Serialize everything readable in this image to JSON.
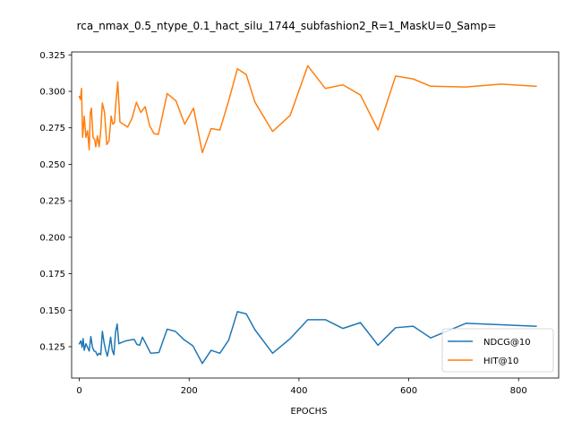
{
  "chart_data": {
    "type": "line",
    "title": "rca_nmax_0.5_ntype_0.1_hact_silu_1744_subfashion2_R=1_MaskU=0_Samp=",
    "xlabel": "EPOCHS",
    "ylabel": "",
    "xlim": [
      -14,
      873
    ],
    "ylim": [
      0.1035,
      0.327
    ],
    "x_ticks": [
      0,
      200,
      400,
      600,
      800
    ],
    "y_ticks": [
      0.125,
      0.15,
      0.175,
      0.2,
      0.225,
      0.25,
      0.275,
      0.3,
      0.325
    ],
    "x_tick_labels": [
      "0",
      "200",
      "400",
      "600",
      "800"
    ],
    "y_tick_labels": [
      "0.125",
      "0.150",
      "0.175",
      "0.200",
      "0.225",
      "0.250",
      "0.275",
      "0.300",
      "0.325"
    ],
    "grid": false,
    "legend": "lower-right",
    "series": [
      {
        "name": "NDCG@10",
        "color": "#1f77b4",
        "points": [
          [
            0,
            0.127
          ],
          [
            3,
            0.129
          ],
          [
            5,
            0.1245
          ],
          [
            7,
            0.1305
          ],
          [
            9,
            0.1225
          ],
          [
            12,
            0.127
          ],
          [
            15,
            0.1245
          ],
          [
            18,
            0.122
          ],
          [
            21,
            0.132
          ],
          [
            24,
            0.1245
          ],
          [
            27,
            0.122
          ],
          [
            30,
            0.1215
          ],
          [
            33,
            0.119
          ],
          [
            36,
            0.1205
          ],
          [
            39,
            0.1195
          ],
          [
            42,
            0.1355
          ],
          [
            45,
            0.128
          ],
          [
            48,
            0.1225
          ],
          [
            51,
            0.1185
          ],
          [
            54,
            0.124
          ],
          [
            57,
            0.1315
          ],
          [
            60,
            0.1225
          ],
          [
            63,
            0.1195
          ],
          [
            66,
            0.135
          ],
          [
            69,
            0.1405
          ],
          [
            72,
            0.127
          ],
          [
            78,
            0.128
          ],
          [
            85,
            0.129
          ],
          [
            92,
            0.1295
          ],
          [
            100,
            0.13
          ],
          [
            105,
            0.1265
          ],
          [
            110,
            0.126
          ],
          [
            115,
            0.1315
          ],
          [
            130,
            0.1205
          ],
          [
            145,
            0.121
          ],
          [
            160,
            0.137
          ],
          [
            175,
            0.1355
          ],
          [
            190,
            0.13
          ],
          [
            207,
            0.1255
          ],
          [
            224,
            0.1135
          ],
          [
            240,
            0.1225
          ],
          [
            256,
            0.1205
          ],
          [
            272,
            0.1295
          ],
          [
            288,
            0.149
          ],
          [
            304,
            0.1475
          ],
          [
            320,
            0.1365
          ],
          [
            352,
            0.1205
          ],
          [
            384,
            0.1305
          ],
          [
            416,
            0.1435
          ],
          [
            448,
            0.1435
          ],
          [
            480,
            0.1375
          ],
          [
            512,
            0.1415
          ],
          [
            544,
            0.126
          ],
          [
            576,
            0.138
          ],
          [
            608,
            0.139
          ],
          [
            640,
            0.131
          ],
          [
            704,
            0.141
          ],
          [
            768,
            0.14
          ],
          [
            832,
            0.139
          ]
        ]
      },
      {
        "name": "HIT@10",
        "color": "#ff7f0e",
        "points": [
          [
            0,
            0.2965
          ],
          [
            2,
            0.2945
          ],
          [
            4,
            0.302
          ],
          [
            6,
            0.2685
          ],
          [
            9,
            0.283
          ],
          [
            12,
            0.2685
          ],
          [
            15,
            0.273
          ],
          [
            18,
            0.26
          ],
          [
            20,
            0.285
          ],
          [
            22,
            0.2885
          ],
          [
            25,
            0.2685
          ],
          [
            28,
            0.267
          ],
          [
            30,
            0.262
          ],
          [
            33,
            0.2695
          ],
          [
            36,
            0.262
          ],
          [
            39,
            0.273
          ],
          [
            42,
            0.292
          ],
          [
            46,
            0.2855
          ],
          [
            50,
            0.2635
          ],
          [
            54,
            0.266
          ],
          [
            58,
            0.283
          ],
          [
            61,
            0.2775
          ],
          [
            64,
            0.2785
          ],
          [
            67,
            0.294
          ],
          [
            70,
            0.3065
          ],
          [
            74,
            0.279
          ],
          [
            80,
            0.2775
          ],
          [
            88,
            0.2755
          ],
          [
            96,
            0.2815
          ],
          [
            104,
            0.2925
          ],
          [
            112,
            0.2855
          ],
          [
            120,
            0.2895
          ],
          [
            128,
            0.2765
          ],
          [
            136,
            0.271
          ],
          [
            144,
            0.2705
          ],
          [
            160,
            0.2985
          ],
          [
            176,
            0.2935
          ],
          [
            192,
            0.2775
          ],
          [
            208,
            0.2885
          ],
          [
            224,
            0.258
          ],
          [
            240,
            0.2745
          ],
          [
            256,
            0.2735
          ],
          [
            272,
            0.2935
          ],
          [
            288,
            0.3155
          ],
          [
            304,
            0.3115
          ],
          [
            320,
            0.2925
          ],
          [
            352,
            0.2725
          ],
          [
            384,
            0.2835
          ],
          [
            416,
            0.3175
          ],
          [
            448,
            0.302
          ],
          [
            480,
            0.3045
          ],
          [
            512,
            0.2975
          ],
          [
            544,
            0.2735
          ],
          [
            576,
            0.3105
          ],
          [
            608,
            0.3085
          ],
          [
            640,
            0.3035
          ],
          [
            704,
            0.303
          ],
          [
            768,
            0.305
          ],
          [
            832,
            0.3035
          ]
        ]
      }
    ]
  }
}
